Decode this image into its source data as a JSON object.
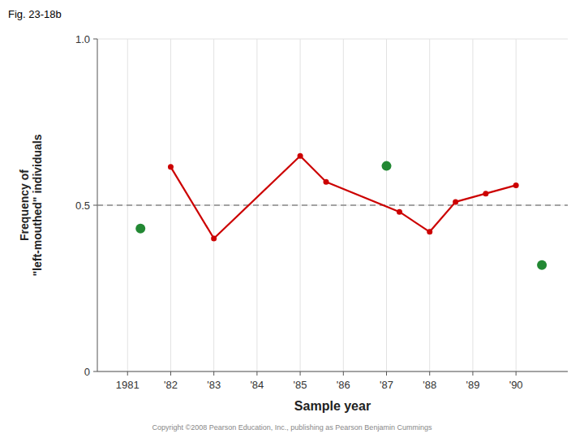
{
  "chart_data": {
    "type": "line",
    "title": "Fig. 23-18b",
    "x_label": "Sample year",
    "y_label": "Frequency of\n\"left-mouthed\" individuals",
    "annotations": [
      "Copyright ©2008 Pearson Education, Inc., publishing as Pearson Benjamin Cummings"
    ],
    "xlim": [
      1980.3,
      1991.2
    ],
    "xticks": [
      1981,
      {
        "value": 1982,
        "label": "'82"
      },
      {
        "value": 1983,
        "label": "'83"
      },
      {
        "value": 1984,
        "label": "'84"
      },
      {
        "value": 1985,
        "label": "'85"
      },
      {
        "value": 1986,
        "label": "'86"
      },
      {
        "value": 1987,
        "label": "'87"
      },
      {
        "value": 1988,
        "label": "'88"
      },
      {
        "value": 1989,
        "label": "'89"
      },
      {
        "value": 1990,
        "label": "'90"
      }
    ],
    "ylim": [
      0,
      1.0
    ],
    "yticks": [
      0,
      0.5,
      {
        "value": 1.0,
        "label": "1.0"
      }
    ],
    "grid": true,
    "hlines": [
      {
        "y": 0.5,
        "color": "#888888",
        "line_style": "dashed"
      }
    ],
    "series": [
      {
        "type": "line",
        "color": "#cc0000",
        "marker": "circle",
        "x": [
          1982,
          1983,
          1985,
          1985.6,
          1987.3,
          1988,
          1988.6,
          1989.3,
          1990
        ],
        "values": [
          0.615,
          0.4,
          0.648,
          0.57,
          0.48,
          0.42,
          0.51,
          0.535,
          0.56
        ]
      },
      {
        "type": "scatter",
        "color": "#228833",
        "marker": "circle",
        "x": [
          1981.3,
          1987.0,
          1990.6
        ],
        "values": [
          0.43,
          0.618,
          0.32
        ]
      }
    ]
  }
}
